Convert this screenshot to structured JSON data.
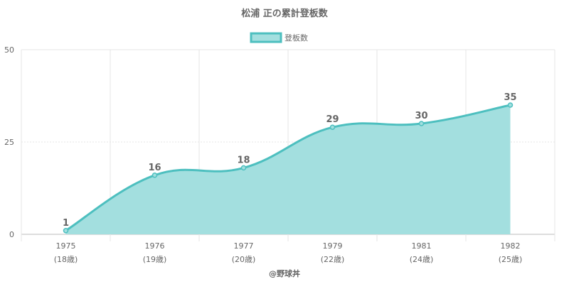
{
  "chart_data": {
    "type": "area",
    "title": "松浦 正の累計登板数",
    "legend": {
      "label": "登板数",
      "placement": "top"
    },
    "categories": [
      "1975",
      "1976",
      "1977",
      "1979",
      "1981",
      "1982"
    ],
    "category_sublabels": [
      "(18歳)",
      "(19歳)",
      "(20歳)",
      "(22歳)",
      "(24歳)",
      "(25歳)"
    ],
    "series": [
      {
        "name": "登板数",
        "values": [
          1,
          16,
          18,
          29,
          30,
          35
        ]
      }
    ],
    "ylim": [
      0,
      50
    ],
    "yticks": [
      0,
      25,
      50
    ],
    "grid": true,
    "xlabel": "",
    "ylabel": "",
    "colors": {
      "line": "#4dbfbf",
      "fill": "#a3dfdf"
    }
  },
  "credit": "@野球丼"
}
